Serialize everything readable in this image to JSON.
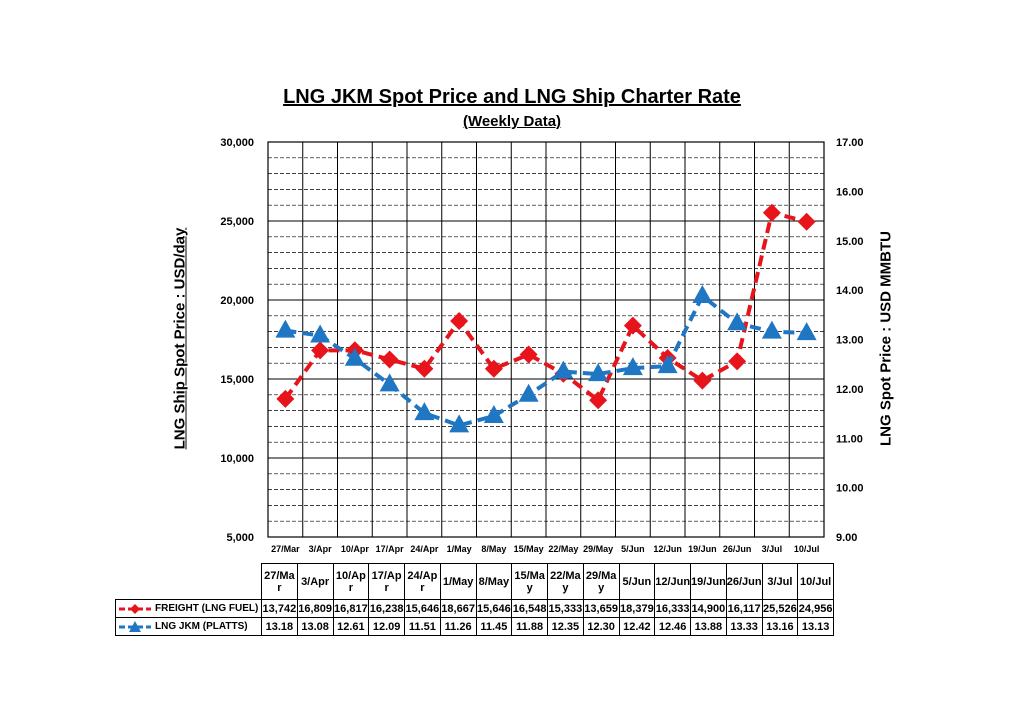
{
  "chart_data": {
    "type": "line",
    "title": "LNG JKM Spot Price and LNG Ship Charter Rate",
    "subtitle": "(Weekly Data)",
    "ylabel_left": "LNG Ship Spot Price : USD/day",
    "ylabel_right": "LNG Spot Price : USD MMBTU",
    "categories": [
      "27/Mar",
      "3/Apr",
      "10/Apr",
      "17/Apr",
      "24/Apr",
      "1/May",
      "8/May",
      "15/May",
      "22/May",
      "29/May",
      "5/Jun",
      "12/Jun",
      "19/Jun",
      "26/Jun",
      "3/Jul",
      "10/Jul"
    ],
    "table_headers": [
      "27/Ma\nr",
      "3/Apr",
      "10/Ap\nr",
      "17/Ap\nr",
      "24/Ap\nr",
      "1/May",
      "8/May",
      "15/Ma\ny",
      "22/Ma\ny",
      "29/Ma\ny",
      "5/Jun",
      "12/Jun",
      "19/Jun",
      "26/Jun",
      "3/Jul",
      "10/Jul"
    ],
    "ylim_left": [
      5000,
      30000
    ],
    "yticks_left": [
      "5,000",
      "10,000",
      "15,000",
      "20,000",
      "25,000",
      "30,000"
    ],
    "ylim_right": [
      9.0,
      17.0
    ],
    "yticks_right": [
      "9.00",
      "10.00",
      "11.00",
      "12.00",
      "13.00",
      "14.00",
      "15.00",
      "16.00",
      "17.00"
    ],
    "grid": true,
    "series": [
      {
        "name": "FREIGHT (LNG FUEL)",
        "axis": "left",
        "color": "#e8141b",
        "marker": "diamond",
        "values": [
          13742,
          16809,
          16817,
          16238,
          15646,
          18667,
          15646,
          16548,
          15333,
          13659,
          18379,
          16333,
          14900,
          16117,
          25526,
          24956
        ],
        "labels": [
          "13,742",
          "16,809",
          "16,817",
          "16,238",
          "15,646",
          "18,667",
          "15,646",
          "16,548",
          "15,333",
          "13,659",
          "18,379",
          "16,333",
          "14,900",
          "16,117",
          "25,526",
          "24,956"
        ]
      },
      {
        "name": "LNG JKM (PLATTS)",
        "axis": "right",
        "color": "#1f77c4",
        "marker": "triangle",
        "values": [
          13.18,
          13.08,
          12.61,
          12.09,
          11.51,
          11.26,
          11.45,
          11.88,
          12.35,
          12.3,
          12.42,
          12.46,
          13.88,
          13.33,
          13.16,
          13.13
        ],
        "labels": [
          "13.18",
          "13.08",
          "12.61",
          "12.09",
          "11.51",
          "11.26",
          "11.45",
          "11.88",
          "12.35",
          "12.30",
          "12.42",
          "12.46",
          "13.88",
          "13.33",
          "13.16",
          "13.13"
        ]
      }
    ]
  }
}
